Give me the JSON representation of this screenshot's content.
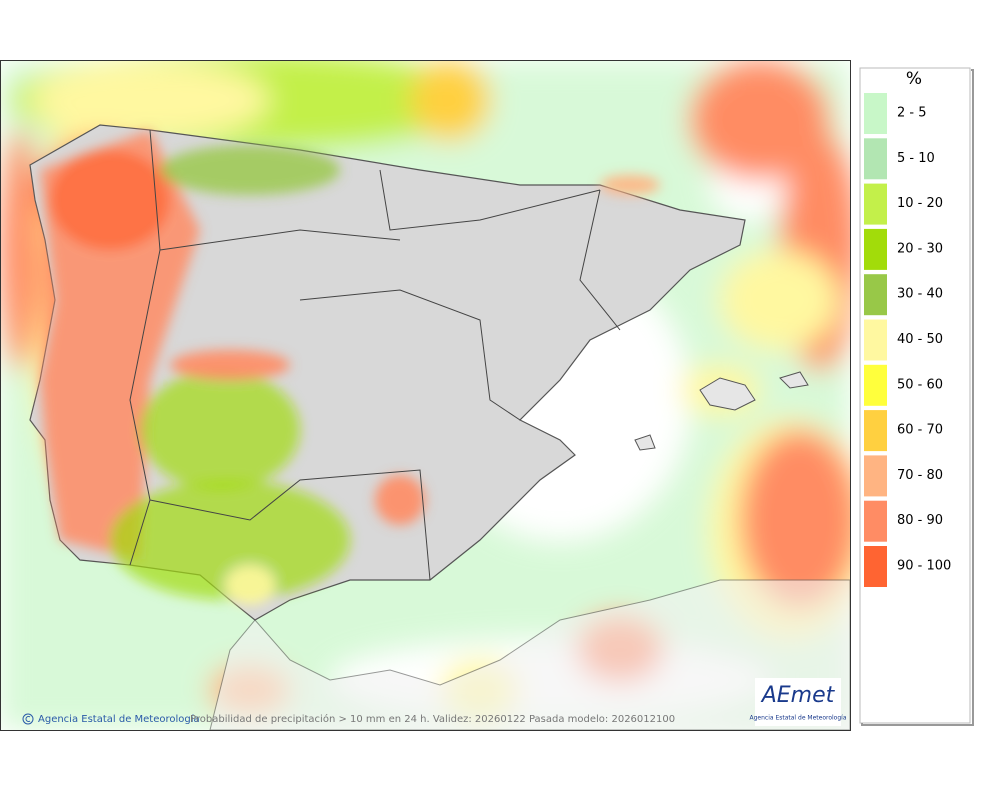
{
  "map": {
    "footer": {
      "credit": "Agencia Estatal de Meteorología",
      "caption": "Probabilidad de precipitación > 10 mm en 24 h. Validez: 20260122 Pasada modelo: 2026012100"
    },
    "logo": {
      "name": "AEmet",
      "subtitle": "Agencia Estatal de Meteorología"
    }
  },
  "legend": {
    "title": "%",
    "items": [
      {
        "label": "2 - 5",
        "color": "#c8f7c8"
      },
      {
        "label": "5 - 10",
        "color": "#b2e6b2"
      },
      {
        "label": "10 - 20",
        "color": "#c3f04a"
      },
      {
        "label": "20 - 30",
        "color": "#a2dc0a"
      },
      {
        "label": "30 - 40",
        "color": "#98c848"
      },
      {
        "label": "40 - 50",
        "color": "#fff8a0"
      },
      {
        "label": "50 - 60",
        "color": "#ffff3c"
      },
      {
        "label": "60 - 70",
        "color": "#ffd040"
      },
      {
        "label": "70 - 80",
        "color": "#ffb482"
      },
      {
        "label": "80 - 90",
        "color": "#ff8c64"
      },
      {
        "label": "90 - 100",
        "color": "#ff6432"
      }
    ]
  }
}
